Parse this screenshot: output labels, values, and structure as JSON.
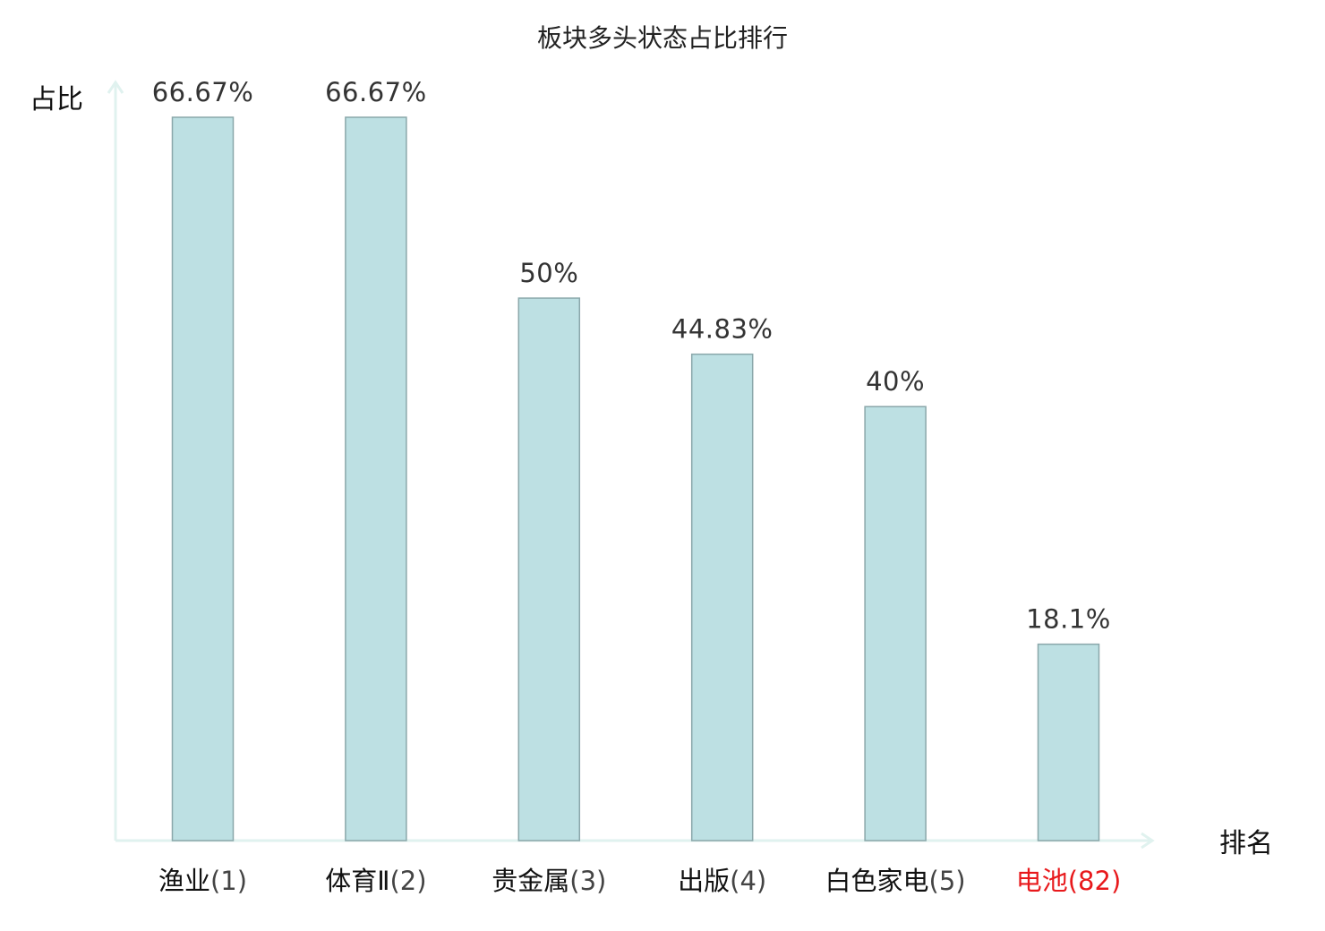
{
  "chart_data": {
    "type": "bar",
    "title": "板块多头状态占比排行",
    "xlabel": "排名",
    "ylabel": "占比",
    "ylim": [
      0,
      70
    ],
    "grid": false,
    "categories": [
      {
        "name": "渔业",
        "rank": "(1)",
        "highlight": false
      },
      {
        "name": "体育Ⅱ",
        "rank": "(2)",
        "highlight": false
      },
      {
        "name": "贵金属",
        "rank": "(3)",
        "highlight": false
      },
      {
        "name": "出版",
        "rank": "(4)",
        "highlight": false
      },
      {
        "name": "白色家电",
        "rank": "(5)",
        "highlight": false
      },
      {
        "name": "电池",
        "rank": "(82)",
        "highlight": true
      }
    ],
    "values": [
      66.67,
      66.67,
      50,
      44.83,
      40,
      18.1
    ],
    "value_labels": [
      "66.67%",
      "66.67%",
      "50%",
      "44.83%",
      "40%",
      "18.1%"
    ],
    "colors": {
      "bar_fill": "#bde0e3",
      "bar_stroke": "#8aa7aa",
      "axis": "#e0f2ef",
      "highlight": "#e8191c"
    }
  }
}
